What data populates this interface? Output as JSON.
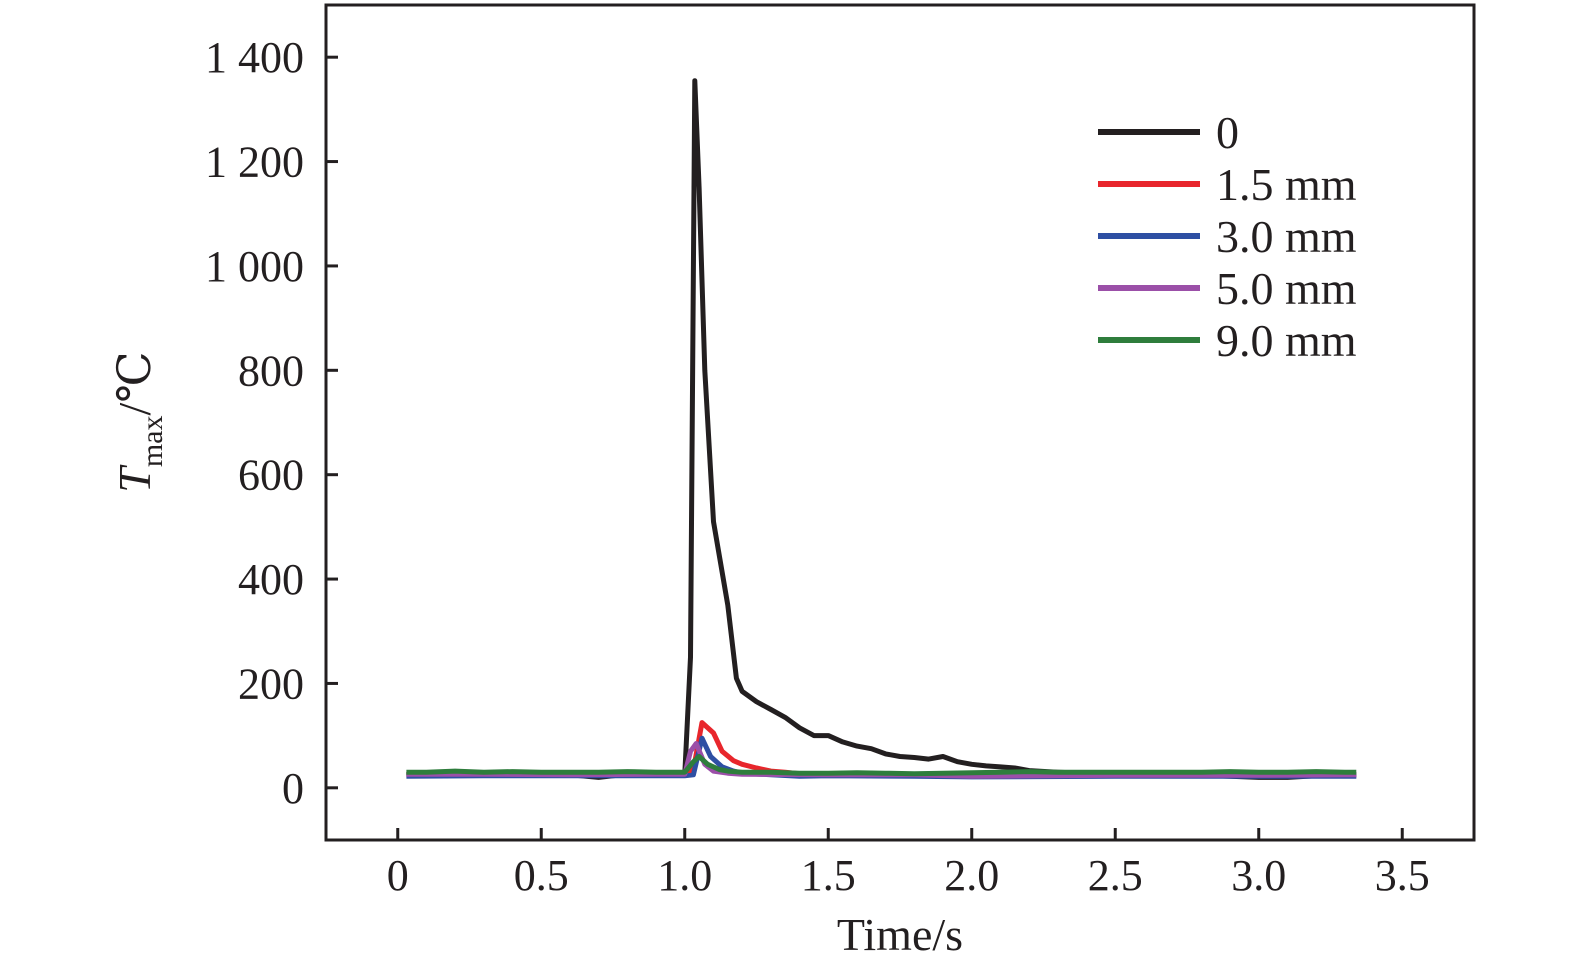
{
  "chart_data": {
    "type": "line",
    "xlabel": "Time/s",
    "ylabel_main": "T",
    "ylabel_sub": "max",
    "ylabel_unit": "/℃",
    "xlim": [
      -0.25,
      3.75
    ],
    "ylim": [
      -100,
      1500
    ],
    "x_ticks": [
      0,
      0.5,
      1.0,
      1.5,
      2.0,
      2.5,
      3.0,
      3.5
    ],
    "x_tick_labels": [
      "0",
      "0.5",
      "1.0",
      "1.5",
      "2.0",
      "2.5",
      "3.0",
      "3.5"
    ],
    "y_ticks": [
      0,
      200,
      400,
      600,
      800,
      1000,
      1200,
      1400
    ],
    "y_tick_labels": [
      "0",
      "200",
      "400",
      "600",
      "800",
      "1 000",
      "1 200",
      "1 400"
    ],
    "grid": false,
    "legend_position": "top-right",
    "series": [
      {
        "name": "0",
        "color": "#231f20",
        "points": [
          [
            0.03,
            25
          ],
          [
            0.1,
            27
          ],
          [
            0.2,
            26
          ],
          [
            0.3,
            28
          ],
          [
            0.4,
            24
          ],
          [
            0.5,
            26
          ],
          [
            0.6,
            25
          ],
          [
            0.7,
            20
          ],
          [
            0.8,
            26
          ],
          [
            0.9,
            27
          ],
          [
            1.0,
            27
          ],
          [
            1.02,
            250
          ],
          [
            1.035,
            1355
          ],
          [
            1.05,
            1150
          ],
          [
            1.07,
            800
          ],
          [
            1.1,
            510
          ],
          [
            1.15,
            350
          ],
          [
            1.18,
            210
          ],
          [
            1.2,
            185
          ],
          [
            1.25,
            165
          ],
          [
            1.3,
            150
          ],
          [
            1.35,
            135
          ],
          [
            1.4,
            115
          ],
          [
            1.45,
            100
          ],
          [
            1.5,
            100
          ],
          [
            1.55,
            88
          ],
          [
            1.6,
            80
          ],
          [
            1.65,
            75
          ],
          [
            1.7,
            65
          ],
          [
            1.75,
            60
          ],
          [
            1.8,
            58
          ],
          [
            1.85,
            55
          ],
          [
            1.9,
            60
          ],
          [
            1.95,
            50
          ],
          [
            2.0,
            45
          ],
          [
            2.05,
            42
          ],
          [
            2.1,
            40
          ],
          [
            2.15,
            38
          ],
          [
            2.2,
            33
          ],
          [
            2.3,
            30
          ],
          [
            2.4,
            28
          ],
          [
            2.5,
            27
          ],
          [
            2.6,
            26
          ],
          [
            2.7,
            25
          ],
          [
            2.8,
            24
          ],
          [
            2.9,
            22
          ],
          [
            3.0,
            20
          ],
          [
            3.1,
            20
          ],
          [
            3.2,
            23
          ],
          [
            3.3,
            24
          ],
          [
            3.34,
            25
          ]
        ]
      },
      {
        "name": "1.5 mm",
        "color": "#e8262c",
        "points": [
          [
            0.03,
            25
          ],
          [
            0.2,
            26
          ],
          [
            0.4,
            25
          ],
          [
            0.6,
            25
          ],
          [
            0.8,
            26
          ],
          [
            1.0,
            26
          ],
          [
            1.03,
            35
          ],
          [
            1.06,
            125
          ],
          [
            1.1,
            105
          ],
          [
            1.13,
            70
          ],
          [
            1.17,
            52
          ],
          [
            1.2,
            45
          ],
          [
            1.25,
            38
          ],
          [
            1.3,
            32
          ],
          [
            1.35,
            30
          ],
          [
            1.4,
            27
          ],
          [
            1.5,
            26
          ],
          [
            1.7,
            25
          ],
          [
            2.0,
            24
          ],
          [
            2.5,
            24
          ],
          [
            3.0,
            24
          ],
          [
            3.34,
            25
          ]
        ]
      },
      {
        "name": "3.0 mm",
        "color": "#2e4fa3",
        "points": [
          [
            0.03,
            22
          ],
          [
            0.3,
            23
          ],
          [
            0.6,
            23
          ],
          [
            0.9,
            23
          ],
          [
            1.0,
            23
          ],
          [
            1.03,
            25
          ],
          [
            1.06,
            95
          ],
          [
            1.09,
            60
          ],
          [
            1.13,
            40
          ],
          [
            1.17,
            32
          ],
          [
            1.2,
            28
          ],
          [
            1.3,
            25
          ],
          [
            1.4,
            22
          ],
          [
            1.5,
            23
          ],
          [
            1.8,
            22
          ],
          [
            2.0,
            21
          ],
          [
            2.5,
            22
          ],
          [
            3.0,
            22
          ],
          [
            3.34,
            22
          ]
        ]
      },
      {
        "name": "5.0 mm",
        "color": "#9b4fa8",
        "points": [
          [
            0.03,
            26
          ],
          [
            0.3,
            26
          ],
          [
            0.6,
            25
          ],
          [
            0.9,
            26
          ],
          [
            1.0,
            26
          ],
          [
            1.02,
            70
          ],
          [
            1.04,
            85
          ],
          [
            1.07,
            45
          ],
          [
            1.1,
            32
          ],
          [
            1.15,
            28
          ],
          [
            1.2,
            26
          ],
          [
            1.5,
            25
          ],
          [
            1.8,
            25
          ],
          [
            2.0,
            22
          ],
          [
            2.5,
            24
          ],
          [
            3.0,
            24
          ],
          [
            3.34,
            25
          ]
        ]
      },
      {
        "name": "9.0 mm",
        "color": "#2e7d3c",
        "points": [
          [
            0.03,
            30
          ],
          [
            0.1,
            30
          ],
          [
            0.2,
            32
          ],
          [
            0.3,
            30
          ],
          [
            0.4,
            31
          ],
          [
            0.5,
            30
          ],
          [
            0.6,
            30
          ],
          [
            0.7,
            30
          ],
          [
            0.8,
            31
          ],
          [
            0.9,
            30
          ],
          [
            1.0,
            30
          ],
          [
            1.03,
            50
          ],
          [
            1.05,
            60
          ],
          [
            1.08,
            45
          ],
          [
            1.12,
            35
          ],
          [
            1.15,
            32
          ],
          [
            1.2,
            30
          ],
          [
            1.3,
            30
          ],
          [
            1.4,
            28
          ],
          [
            1.5,
            28
          ],
          [
            1.6,
            29
          ],
          [
            1.7,
            28
          ],
          [
            1.8,
            27
          ],
          [
            1.9,
            28
          ],
          [
            2.0,
            29
          ],
          [
            2.1,
            30
          ],
          [
            2.2,
            31
          ],
          [
            2.3,
            30
          ],
          [
            2.4,
            30
          ],
          [
            2.5,
            30
          ],
          [
            2.6,
            30
          ],
          [
            2.7,
            30
          ],
          [
            2.8,
            30
          ],
          [
            2.9,
            31
          ],
          [
            3.0,
            30
          ],
          [
            3.1,
            30
          ],
          [
            3.2,
            31
          ],
          [
            3.3,
            30
          ],
          [
            3.34,
            30
          ]
        ]
      }
    ]
  }
}
